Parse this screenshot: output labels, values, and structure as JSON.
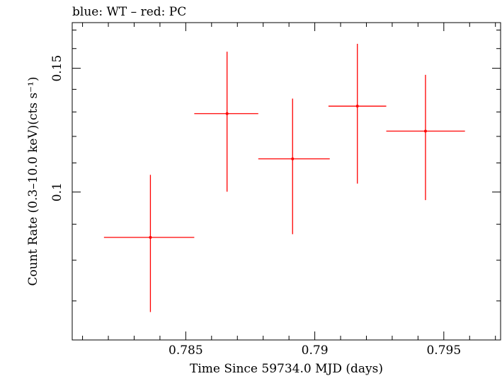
{
  "chart_data": {
    "type": "scatter",
    "title": "blue: WT – red: PC",
    "xlabel": "Time Since 59734.0 MJD (days)",
    "ylabel": "Count Rate (0.3–10.0 keV)(cts s⁻¹)",
    "xlim": [
      0.7806,
      0.7972
    ],
    "ylim": [
      0.0616,
      0.1742
    ],
    "x_ticks": [
      0.785,
      0.79,
      0.795
    ],
    "x_tick_labels": [
      "0.785",
      "0.79",
      "0.795"
    ],
    "y_ticks": [
      0.1,
      0.15
    ],
    "y_tick_labels": [
      "0.1",
      "0.15"
    ],
    "y_scale": "log",
    "grid": false,
    "series": [
      {
        "color": "#ff0000",
        "points": [
          {
            "x": 0.78363,
            "y": 0.0862,
            "xerr_lo": 0.78183,
            "xerr_hi": 0.78533,
            "yerr_lo": 0.0675,
            "yerr_hi": 0.1058
          },
          {
            "x": 0.7866,
            "y": 0.1293,
            "xerr_lo": 0.78533,
            "xerr_hi": 0.78781,
            "yerr_lo": 0.1001,
            "yerr_hi": 0.1584
          },
          {
            "x": 0.78914,
            "y": 0.1115,
            "xerr_lo": 0.78781,
            "xerr_hi": 0.79058,
            "yerr_lo": 0.0871,
            "yerr_hi": 0.1358
          },
          {
            "x": 0.79165,
            "y": 0.1325,
            "xerr_lo": 0.79053,
            "xerr_hi": 0.79277,
            "yerr_lo": 0.1028,
            "yerr_hi": 0.1625
          },
          {
            "x": 0.79429,
            "y": 0.1221,
            "xerr_lo": 0.79277,
            "xerr_hi": 0.79582,
            "yerr_lo": 0.0974,
            "yerr_hi": 0.1468
          }
        ]
      }
    ]
  }
}
